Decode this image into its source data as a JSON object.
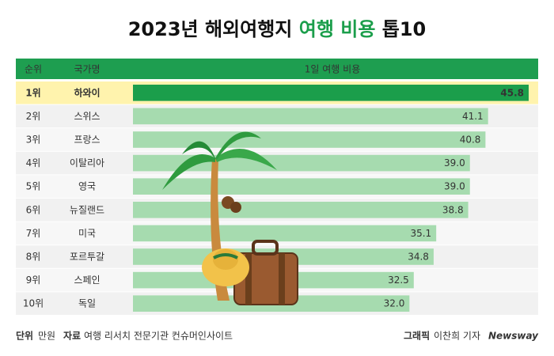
{
  "chart_data": {
    "type": "bar",
    "title": "2023년 해외여행지",
    "title_highlight": "여행 비용",
    "title_suffix": "톱10",
    "headers": [
      "순위",
      "국가명",
      "1일 여행 비용"
    ],
    "ranks": [
      "1위",
      "2위",
      "3위",
      "4위",
      "5위",
      "6위",
      "7위",
      "8위",
      "9위",
      "10위"
    ],
    "categories": [
      "하와이",
      "스위스",
      "프랑스",
      "이탈리아",
      "영국",
      "뉴질랜드",
      "미국",
      "포르투갈",
      "스페인",
      "독일"
    ],
    "values": [
      45.8,
      41.1,
      40.8,
      39.0,
      39.0,
      38.8,
      35.1,
      34.8,
      32.5,
      32.0
    ],
    "value_labels": [
      "45.8",
      "41.1",
      "40.8",
      "39.0",
      "39.0",
      "38.8",
      "35.1",
      "34.8",
      "32.5",
      "32.0"
    ],
    "color": "#a6dbaf",
    "highlight_color": "#1b9e4b"
  },
  "footer": {
    "unit_label": "단위",
    "unit": "만원",
    "source_label": "자료",
    "source": "여행 리서치 전문기관 컨슈머인사이트",
    "credit_label": "그래픽",
    "credit": "이찬희 기자",
    "brand": "Newsway"
  }
}
